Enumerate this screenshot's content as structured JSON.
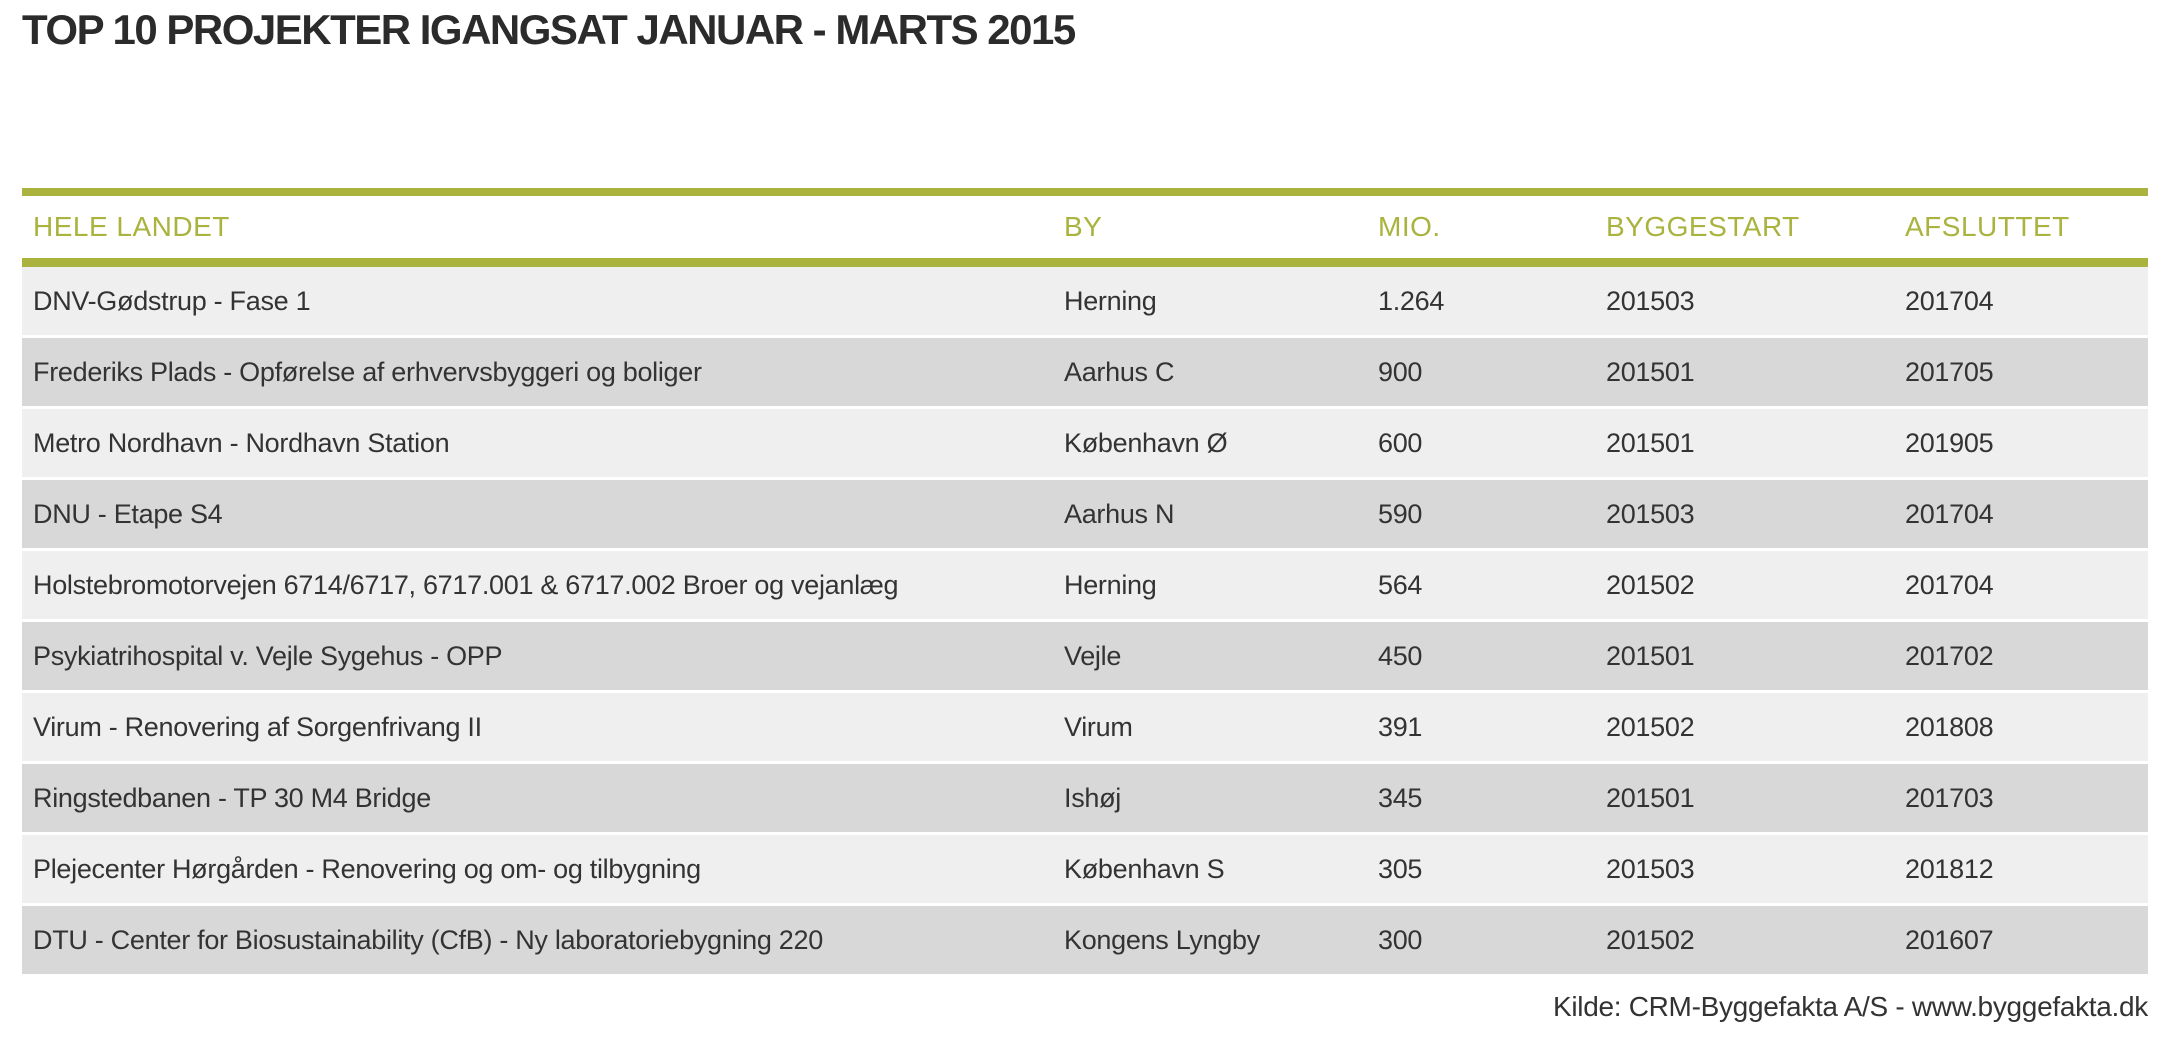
{
  "title": "TOP 10 PROJEKTER IGANGSAT JANUAR - MARTS 2015",
  "table": {
    "columns": [
      "HELE LANDET",
      "BY",
      "MIO.",
      "BYGGESTART",
      "AFSLUTTET"
    ],
    "rows": [
      {
        "project": "DNV-Gødstrup - Fase 1",
        "by": "Herning",
        "mio": "1.264",
        "byggestart": "201503",
        "afsluttet": "201704"
      },
      {
        "project": "Frederiks Plads - Opførelse af erhvervsbyggeri og boliger",
        "by": "Aarhus C",
        "mio": "900",
        "byggestart": "201501",
        "afsluttet": "201705"
      },
      {
        "project": "Metro Nordhavn - Nordhavn Station",
        "by": "København Ø",
        "mio": "600",
        "byggestart": "201501",
        "afsluttet": "201905"
      },
      {
        "project": "DNU - Etape S4",
        "by": "Aarhus N",
        "mio": "590",
        "byggestart": "201503",
        "afsluttet": "201704"
      },
      {
        "project": "Holstebromotorvejen 6714/6717, 6717.001 & 6717.002 Broer og vejanlæg",
        "by": "Herning",
        "mio": "564",
        "byggestart": "201502",
        "afsluttet": "201704"
      },
      {
        "project": "Psykiatrihospital v. Vejle Sygehus - OPP",
        "by": "Vejle",
        "mio": "450",
        "byggestart": "201501",
        "afsluttet": "201702"
      },
      {
        "project": "Virum - Renovering af Sorgenfrivang II",
        "by": "Virum",
        "mio": "391",
        "byggestart": "201502",
        "afsluttet": "201808"
      },
      {
        "project": "Ringstedbanen - TP 30 M4 Bridge",
        "by": "Ishøj",
        "mio": "345",
        "byggestart": "201501",
        "afsluttet": "201703"
      },
      {
        "project": "Plejecenter Hørgården - Renovering og om- og tilbygning",
        "by": "København S",
        "mio": "305",
        "byggestart": "201503",
        "afsluttet": "201812"
      },
      {
        "project": "DTU - Center for Biosustainability (CfB) - Ny laboratoriebygning 220",
        "by": "Kongens Lyngby",
        "mio": "300",
        "byggestart": "201502",
        "afsluttet": "201607"
      }
    ]
  },
  "footer": {
    "source": "Kilde: CRM-Byggefakta A/S - www.byggefakta.dk"
  },
  "colors": {
    "accent_green": "#a9b33d",
    "row_light": "#f0efef",
    "row_dark": "#d8d8d8",
    "body_text": "#333333",
    "title_text": "#2b2b2b"
  }
}
